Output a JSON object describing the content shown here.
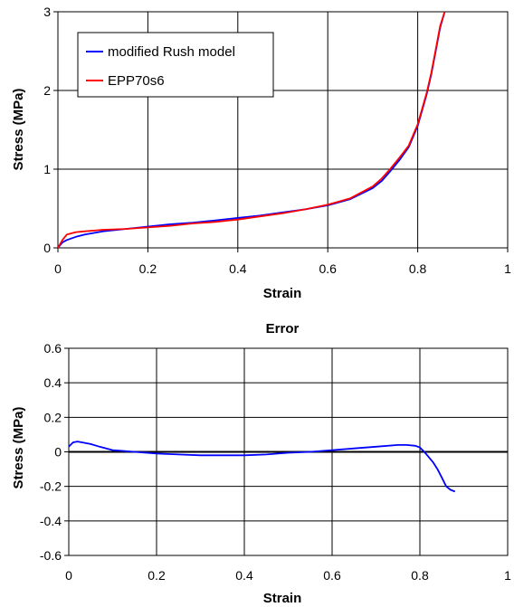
{
  "chart_data": [
    {
      "type": "line",
      "title": "",
      "xlabel": "Strain",
      "ylabel": "Stress (MPa)",
      "xlim": [
        0,
        1
      ],
      "ylim": [
        0,
        3
      ],
      "xticks": [
        "0",
        "0.2",
        "0.4",
        "0.6",
        "0.8",
        "1"
      ],
      "yticks": [
        "0",
        "1",
        "2",
        "3"
      ],
      "grid": true,
      "legend": "top-left",
      "series": [
        {
          "name": "modified Rush model",
          "color": "#0000ff",
          "x": [
            0,
            0.01,
            0.02,
            0.04,
            0.06,
            0.08,
            0.1,
            0.15,
            0.2,
            0.25,
            0.3,
            0.35,
            0.4,
            0.45,
            0.5,
            0.55,
            0.6,
            0.65,
            0.7,
            0.72,
            0.74,
            0.76,
            0.78,
            0.8,
            0.82,
            0.83,
            0.84,
            0.85,
            0.86
          ],
          "y": [
            0,
            0.07,
            0.1,
            0.14,
            0.17,
            0.19,
            0.21,
            0.24,
            0.27,
            0.3,
            0.32,
            0.35,
            0.38,
            0.41,
            0.45,
            0.49,
            0.54,
            0.62,
            0.76,
            0.85,
            0.98,
            1.12,
            1.28,
            1.55,
            1.95,
            2.2,
            2.5,
            2.8,
            3.0
          ]
        },
        {
          "name": "EPP70s6",
          "color": "#ff0000",
          "x": [
            0,
            0.01,
            0.02,
            0.04,
            0.06,
            0.08,
            0.1,
            0.15,
            0.2,
            0.25,
            0.3,
            0.35,
            0.4,
            0.45,
            0.5,
            0.55,
            0.6,
            0.65,
            0.7,
            0.72,
            0.74,
            0.76,
            0.78,
            0.8,
            0.82,
            0.83,
            0.84,
            0.85,
            0.86
          ],
          "y": [
            0,
            0.1,
            0.17,
            0.2,
            0.21,
            0.22,
            0.23,
            0.24,
            0.26,
            0.28,
            0.31,
            0.33,
            0.36,
            0.4,
            0.44,
            0.49,
            0.55,
            0.63,
            0.78,
            0.88,
            1.01,
            1.15,
            1.3,
            1.57,
            1.97,
            2.22,
            2.52,
            2.82,
            3.0
          ]
        }
      ]
    },
    {
      "type": "line",
      "title": "Error",
      "xlabel": "Strain",
      "ylabel": "Stress (MPa)",
      "xlim": [
        0,
        1
      ],
      "ylim": [
        -0.6,
        0.6
      ],
      "xticks": [
        "0",
        "0.2",
        "0.4",
        "0.6",
        "0.8",
        "1"
      ],
      "yticks": [
        "0.6",
        "0.4",
        "0.2",
        "0",
        "-0.2",
        "-0.4",
        "-0.6"
      ],
      "grid": true,
      "series": [
        {
          "color": "#0000ff",
          "x": [
            0,
            0.01,
            0.02,
            0.03,
            0.05,
            0.07,
            0.1,
            0.15,
            0.2,
            0.25,
            0.3,
            0.35,
            0.4,
            0.45,
            0.5,
            0.55,
            0.6,
            0.65,
            0.7,
            0.75,
            0.77,
            0.79,
            0.8,
            0.81,
            0.82,
            0.83,
            0.84,
            0.85,
            0.86,
            0.87,
            0.88
          ],
          "y": [
            0.03,
            0.055,
            0.06,
            0.055,
            0.045,
            0.03,
            0.01,
            0.0,
            -0.01,
            -0.015,
            -0.02,
            -0.02,
            -0.02,
            -0.015,
            -0.005,
            0.0,
            0.01,
            0.02,
            0.03,
            0.04,
            0.04,
            0.035,
            0.025,
            0.0,
            -0.03,
            -0.06,
            -0.1,
            -0.15,
            -0.2,
            -0.22,
            -0.23
          ]
        }
      ]
    }
  ]
}
